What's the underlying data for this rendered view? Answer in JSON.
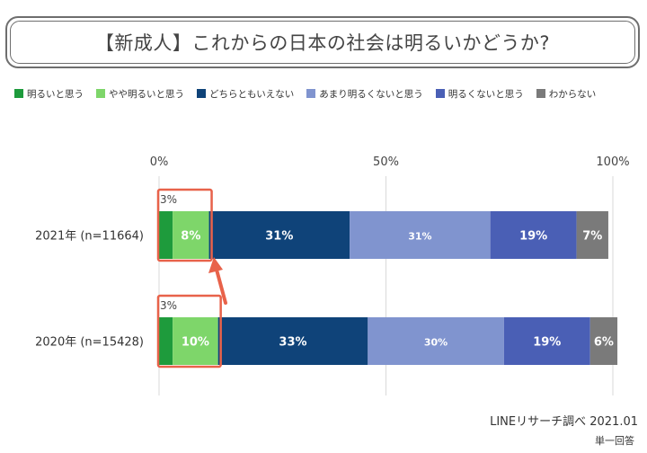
{
  "title": "【新成人】これからの日本の社会は明るいかどうか?",
  "legend": [
    {
      "label": "明るいと思う",
      "color": "#1e9b3c"
    },
    {
      "label": "やや明るいと思う",
      "color": "#7ed66a"
    },
    {
      "label": "どちらともいえない",
      "color": "#0f4379"
    },
    {
      "label": "あまり明るくないと思う",
      "color": "#8094cf"
    },
    {
      "label": "明るくないと思う",
      "color": "#4a5fb5"
    },
    {
      "label": "わからない",
      "color": "#7a7a7a"
    }
  ],
  "chart_data": {
    "type": "bar",
    "orientation": "horizontal-stacked-percent",
    "xlim": [
      0,
      100
    ],
    "xticks": [
      "0%",
      "50%",
      "100%"
    ],
    "grid": true,
    "categories": [
      "2021年 (n=11664)",
      "2020年 (n=15428)"
    ],
    "series": [
      {
        "name": "明るいと思う",
        "values": [
          3,
          3
        ],
        "labels": [
          "3%",
          "3%"
        ],
        "color": "#1e9b3c"
      },
      {
        "name": "やや明るいと思う",
        "values": [
          8,
          10
        ],
        "labels": [
          "8%",
          "10%"
        ],
        "color": "#7ed66a"
      },
      {
        "name": "どちらともいえない",
        "values": [
          31,
          33
        ],
        "labels": [
          "31%",
          "33%"
        ],
        "color": "#0f4379"
      },
      {
        "name": "あまり明るくないと思う",
        "values": [
          31,
          30
        ],
        "labels": [
          "31%",
          "30%"
        ],
        "color": "#8094cf"
      },
      {
        "name": "明るくないと思う",
        "values": [
          19,
          19
        ],
        "labels": [
          "19%",
          "19%"
        ],
        "color": "#4a5fb5"
      },
      {
        "name": "わからない",
        "values": [
          7,
          6
        ],
        "labels": [
          "7%",
          "6%"
        ],
        "color": "#7a7a7a"
      }
    ],
    "highlight": {
      "series": [
        "明るいと思う",
        "やや明るいと思う"
      ],
      "color": "#e8624a",
      "arrow": true
    }
  },
  "footer": {
    "source": "LINEリサーチ調べ 2021.01",
    "note": "単一回答"
  }
}
